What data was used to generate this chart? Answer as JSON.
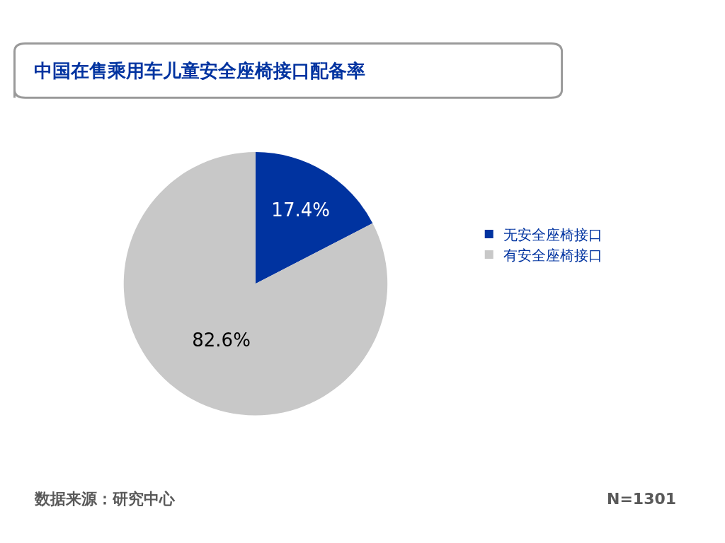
{
  "chart_data": {
    "type": "pie",
    "title": "中国在售乘用车儿童安全座椅接口配备率",
    "categories": [
      "无安全座椅接口",
      "有安全座椅接口"
    ],
    "values": [
      17.4,
      82.6
    ],
    "colors": [
      "#0033a0",
      "#c8c8c8"
    ],
    "value_labels": [
      "17.4%",
      "82.6%"
    ],
    "legend": "right",
    "annotations": [
      "数据来源：研究中心",
      "N=1301"
    ]
  }
}
